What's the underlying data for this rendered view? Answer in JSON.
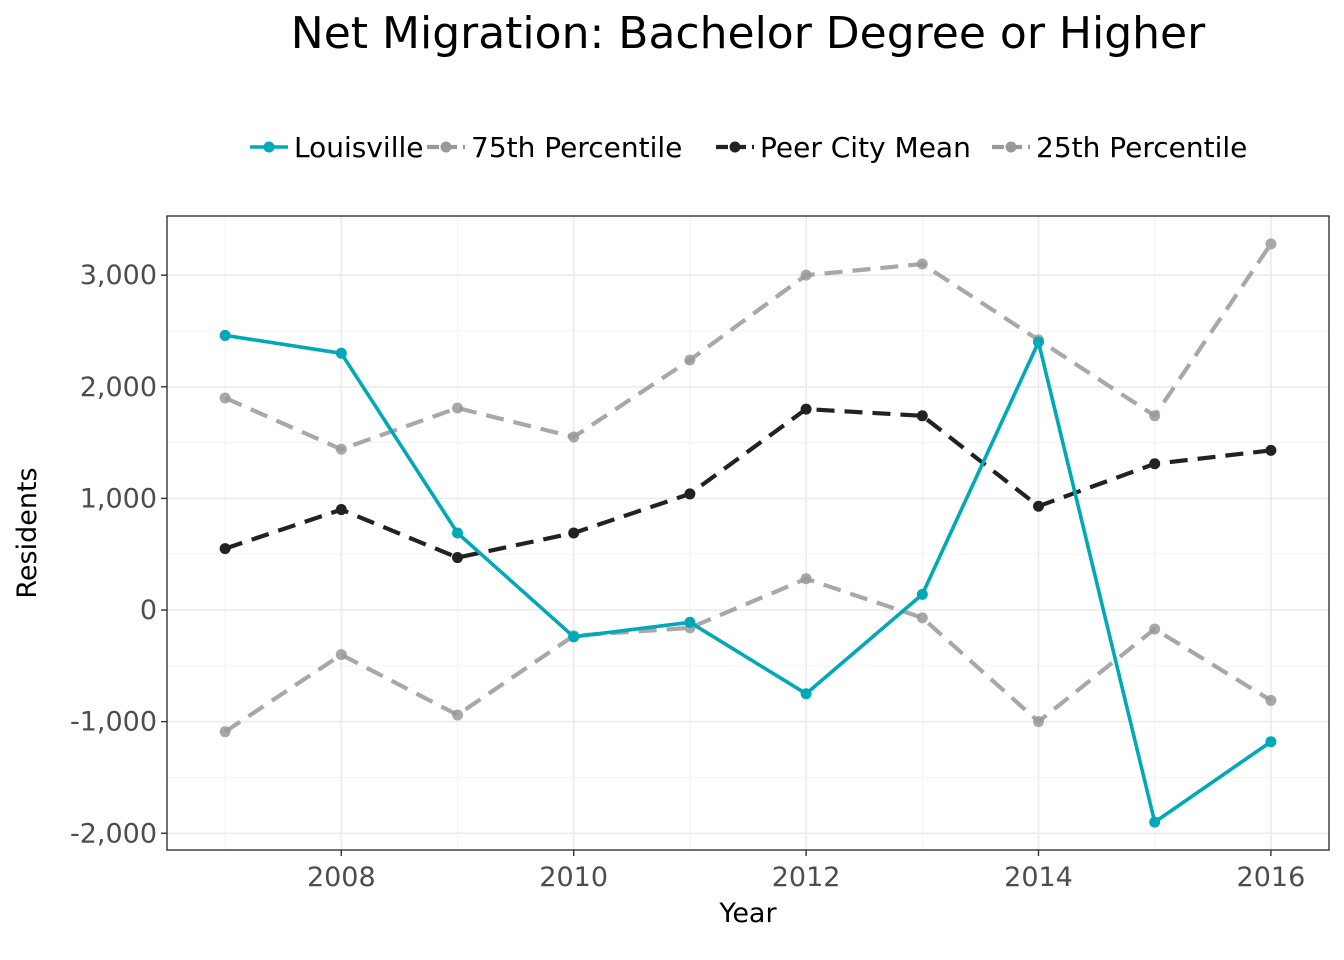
{
  "chart_data": {
    "type": "line",
    "title": "Net Migration: Bachelor Degree or Higher",
    "xlabel": "Year",
    "ylabel": "Residents",
    "x": [
      2007,
      2008,
      2009,
      2010,
      2011,
      2012,
      2013,
      2014,
      2015,
      2016
    ],
    "xlim": [
      2006.5,
      2016.5
    ],
    "ylim": [
      -2150,
      3530
    ],
    "x_ticks": [
      2008,
      2010,
      2012,
      2014,
      2016
    ],
    "y_ticks": [
      -2000,
      -1000,
      0,
      1000,
      2000,
      3000
    ],
    "x_tick_labels": [
      "2008",
      "2010",
      "2012",
      "2014",
      "2016"
    ],
    "y_tick_labels": [
      "-2,000",
      "-1,000",
      "0",
      "1,000",
      "2,000",
      "3,000"
    ],
    "grid": true,
    "legend_position": "top",
    "series": [
      {
        "name": "Louisville",
        "values": [
          2460,
          2300,
          690,
          -240,
          -110,
          -750,
          140,
          2400,
          -1900,
          -1180
        ],
        "color": "#00a9b7",
        "style": "solid"
      },
      {
        "name": "75th Percentile",
        "values": [
          1900,
          1440,
          1810,
          1550,
          2240,
          3000,
          3100,
          2420,
          1740,
          3280
        ],
        "color": "#999999",
        "style": "dashed"
      },
      {
        "name": "Peer City Mean",
        "values": [
          550,
          900,
          470,
          690,
          1040,
          1800,
          1740,
          930,
          1310,
          1430
        ],
        "color": "#222222",
        "style": "dashed"
      },
      {
        "name": "25th Percentile",
        "values": [
          -1090,
          -400,
          -940,
          -230,
          -160,
          280,
          -70,
          -1000,
          -170,
          -810
        ],
        "color": "#999999",
        "style": "dashed"
      }
    ]
  }
}
